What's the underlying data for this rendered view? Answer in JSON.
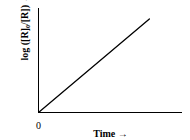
{
  "chart_data": {
    "type": "line",
    "xlabel": "Time →",
    "ylabel": "log ([R]₀/[R]) →",
    "x": [
      0,
      0.77
    ],
    "values": [
      0,
      0.9
    ],
    "color": "#000000",
    "xlim": [
      0,
      1
    ],
    "ylim": [
      0,
      1
    ],
    "xticks": [
      0
    ],
    "yticks": [],
    "tick_labels": "x",
    "grid": false
  }
}
